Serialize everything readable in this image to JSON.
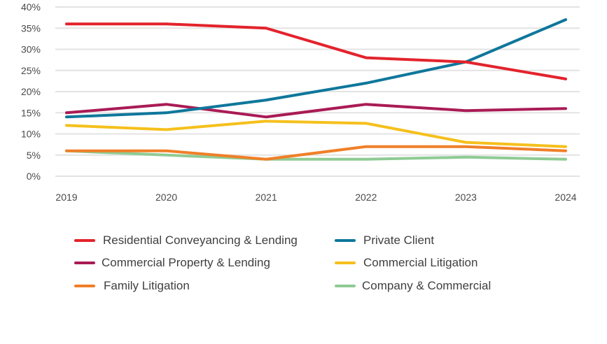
{
  "chart_data": {
    "type": "line",
    "title": "",
    "xlabel": "",
    "ylabel": "",
    "x": [
      "2019",
      "2020",
      "2021",
      "2022",
      "2023",
      "2024"
    ],
    "ylim": [
      0,
      40
    ],
    "yticks": [
      0,
      5,
      10,
      15,
      20,
      25,
      30,
      35,
      40
    ],
    "ytick_labels": [
      "0%",
      "5%",
      "10%",
      "15%",
      "20%",
      "25%",
      "30%",
      "35%",
      "40%"
    ],
    "grid": true,
    "legend_position": "bottom",
    "series": [
      {
        "name": "Residential Conveyancing & Lending",
        "color": "#e3232c",
        "values": [
          36,
          36,
          35,
          28,
          27,
          23
        ]
      },
      {
        "name": "Private Client",
        "color": "#0f779b",
        "values": [
          14,
          15,
          18,
          22,
          27,
          37
        ]
      },
      {
        "name": "Commercial Property & Lending",
        "color": "#a91b55",
        "values": [
          15,
          17,
          14,
          17,
          15.5,
          16
        ]
      },
      {
        "name": "Commercial Litigation",
        "color": "#f5c01c",
        "values": [
          12,
          11,
          13,
          12.5,
          8,
          7
        ]
      },
      {
        "name": "Family Litigation",
        "color": "#f07f28",
        "values": [
          6,
          6,
          4,
          7,
          7,
          6
        ]
      },
      {
        "name": "Company & Commercial",
        "color": "#8fcb94",
        "values": [
          6,
          5,
          4,
          4,
          4.5,
          4
        ]
      }
    ]
  }
}
